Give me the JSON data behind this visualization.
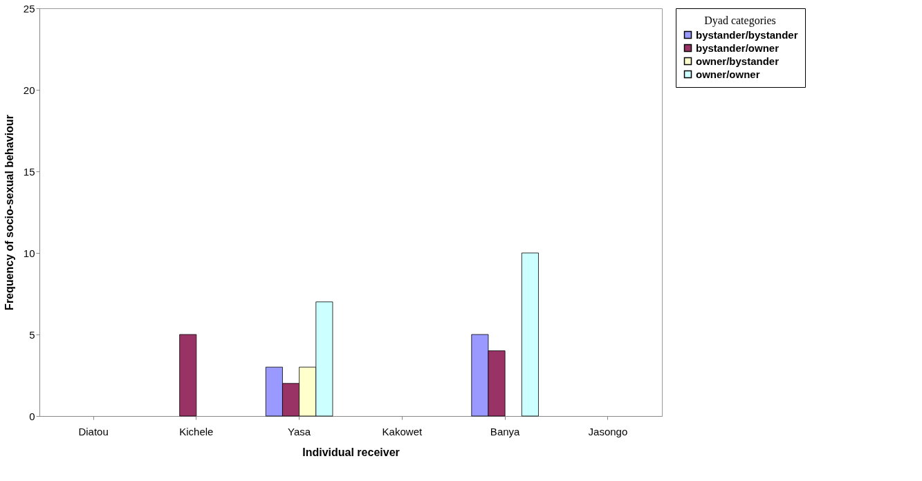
{
  "chart_data": {
    "type": "bar",
    "xlabel": "Individual receiver",
    "ylabel": "Frequency of socio-sexual behaviour",
    "legend_title": "Dyad categories",
    "categories": [
      "Diatou",
      "Kichele",
      "Yasa",
      "Kakowet",
      "Banya",
      "Jasongo"
    ],
    "series": [
      {
        "name": "bystander/bystander",
        "color": "#9999ff",
        "values": [
          0,
          0,
          3,
          0,
          5,
          0
        ]
      },
      {
        "name": "bystander/owner",
        "color": "#993366",
        "values": [
          0,
          5,
          2,
          0,
          4,
          0
        ]
      },
      {
        "name": "owner/bystander",
        "color": "#ffffcc",
        "values": [
          0,
          0,
          3,
          0,
          0,
          0
        ]
      },
      {
        "name": "owner/owner",
        "color": "#ccffff",
        "values": [
          0,
          0,
          7,
          0,
          10,
          0
        ]
      }
    ],
    "ylim": [
      0,
      25
    ],
    "yticks": [
      0,
      5,
      10,
      15,
      20,
      25
    ],
    "grid": false,
    "legend": "right"
  }
}
